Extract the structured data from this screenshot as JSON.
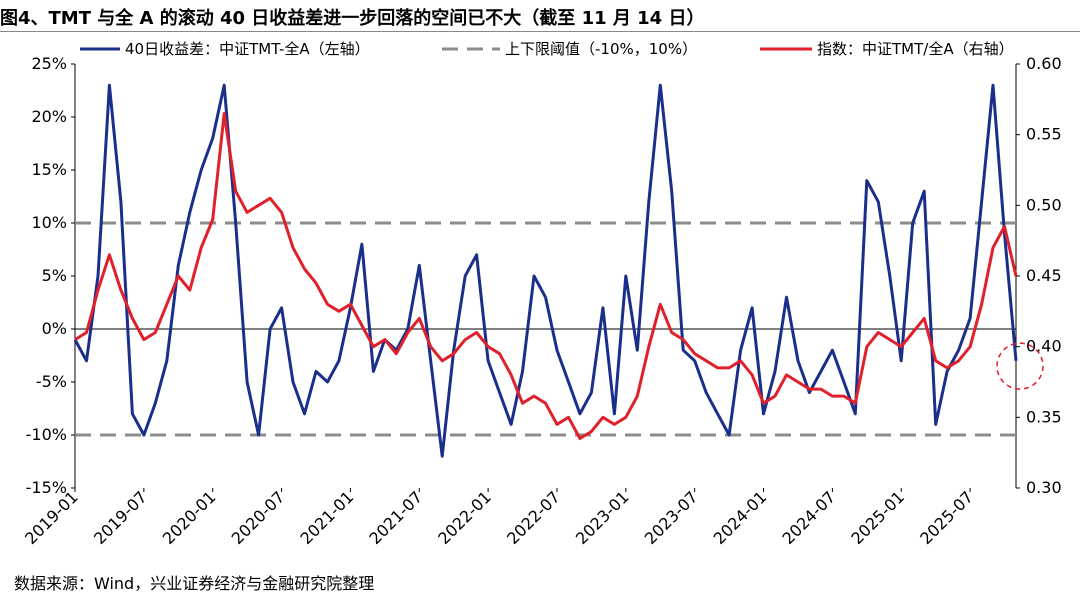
{
  "title": "图4、TMT 与全 A 的滚动 40 日收益差进一步回落的空间已不大（截至 11 月 14 日）",
  "source": "数据来源：Wind，兴业证券经济与金融研究院整理",
  "chart_data": {
    "type": "line",
    "title": "",
    "legend_position": "top",
    "grid": false,
    "x_ticks": [
      "2019-01",
      "2019-07",
      "2020-01",
      "2020-07",
      "2021-01",
      "2021-07",
      "2022-01",
      "2022-07",
      "2023-01",
      "2023-07",
      "2024-01",
      "2024-07",
      "2025-01",
      "2025-07"
    ],
    "x_range": [
      "2019-01",
      "2025-11"
    ],
    "y_left": {
      "ylim": [
        -15,
        25
      ],
      "ticks": [
        "-15%",
        "-10%",
        "-5%",
        "0%",
        "5%",
        "10%",
        "15%",
        "20%",
        "25%"
      ],
      "tick_values": [
        -15,
        -10,
        -5,
        0,
        5,
        10,
        15,
        20,
        25
      ]
    },
    "y_right": {
      "ylim": [
        0.3,
        0.6
      ],
      "ticks": [
        "0.30",
        "0.35",
        "0.40",
        "0.45",
        "0.50",
        "0.55",
        "0.60"
      ],
      "tick_values": [
        0.3,
        0.35,
        0.4,
        0.45,
        0.5,
        0.55,
        0.6
      ]
    },
    "series": [
      {
        "name": "40日收益差：中证TMT-全A（左轴）",
        "axis": "left",
        "color": "#1a2f8c",
        "points": [
          [
            "2019-01",
            -1
          ],
          [
            "2019-02",
            -3
          ],
          [
            "2019-03",
            5
          ],
          [
            "2019-04",
            23
          ],
          [
            "2019-05",
            12
          ],
          [
            "2019-06",
            -8
          ],
          [
            "2019-07",
            -10
          ],
          [
            "2019-08",
            -7
          ],
          [
            "2019-09",
            -3
          ],
          [
            "2019-10",
            6
          ],
          [
            "2019-11",
            11
          ],
          [
            "2019-12",
            15
          ],
          [
            "2020-01",
            18
          ],
          [
            "2020-02",
            23
          ],
          [
            "2020-03",
            10
          ],
          [
            "2020-04",
            -5
          ],
          [
            "2020-05",
            -10
          ],
          [
            "2020-06",
            0
          ],
          [
            "2020-07",
            2
          ],
          [
            "2020-08",
            -5
          ],
          [
            "2020-09",
            -8
          ],
          [
            "2020-10",
            -4
          ],
          [
            "2020-11",
            -5
          ],
          [
            "2020-12",
            -3
          ],
          [
            "2021-01",
            2
          ],
          [
            "2021-02",
            8
          ],
          [
            "2021-03",
            -4
          ],
          [
            "2021-04",
            -1
          ],
          [
            "2021-05",
            -2
          ],
          [
            "2021-06",
            0
          ],
          [
            "2021-07",
            6
          ],
          [
            "2021-08",
            -3
          ],
          [
            "2021-09",
            -12
          ],
          [
            "2021-10",
            -2
          ],
          [
            "2021-11",
            5
          ],
          [
            "2021-12",
            7
          ],
          [
            "2022-01",
            -3
          ],
          [
            "2022-02",
            -6
          ],
          [
            "2022-03",
            -9
          ],
          [
            "2022-04",
            -4
          ],
          [
            "2022-05",
            5
          ],
          [
            "2022-06",
            3
          ],
          [
            "2022-07",
            -2
          ],
          [
            "2022-08",
            -5
          ],
          [
            "2022-09",
            -8
          ],
          [
            "2022-10",
            -6
          ],
          [
            "2022-11",
            2
          ],
          [
            "2022-12",
            -8
          ],
          [
            "2023-01",
            5
          ],
          [
            "2023-02",
            -2
          ],
          [
            "2023-03",
            12
          ],
          [
            "2023-04",
            23
          ],
          [
            "2023-05",
            13
          ],
          [
            "2023-06",
            -2
          ],
          [
            "2023-07",
            -3
          ],
          [
            "2023-08",
            -6
          ],
          [
            "2023-09",
            -8
          ],
          [
            "2023-10",
            -10
          ],
          [
            "2023-11",
            -2
          ],
          [
            "2023-12",
            2
          ],
          [
            "2024-01",
            -8
          ],
          [
            "2024-02",
            -4
          ],
          [
            "2024-03",
            3
          ],
          [
            "2024-04",
            -3
          ],
          [
            "2024-05",
            -6
          ],
          [
            "2024-06",
            -4
          ],
          [
            "2024-07",
            -2
          ],
          [
            "2024-08",
            -5
          ],
          [
            "2024-09",
            -8
          ],
          [
            "2024-10",
            14
          ],
          [
            "2024-11",
            12
          ],
          [
            "2024-12",
            5
          ],
          [
            "2025-01",
            -3
          ],
          [
            "2025-02",
            10
          ],
          [
            "2025-03",
            13
          ],
          [
            "2025-04",
            -9
          ],
          [
            "2025-05",
            -4
          ],
          [
            "2025-06",
            -2
          ],
          [
            "2025-07",
            1
          ],
          [
            "2025-08",
            12
          ],
          [
            "2025-09",
            23
          ],
          [
            "2025-10",
            9
          ],
          [
            "2025-11",
            -3
          ]
        ]
      },
      {
        "name": "上下限阈值（-10%，10%）",
        "axis": "left",
        "color": "#8c8c8c",
        "dashed": true,
        "levels": [
          -10,
          10
        ]
      },
      {
        "name": "指数：中证TMT/全A（右轴）",
        "axis": "right",
        "color": "#e0202a",
        "points": [
          [
            "2019-01",
            0.405
          ],
          [
            "2019-02",
            0.41
          ],
          [
            "2019-03",
            0.44
          ],
          [
            "2019-04",
            0.465
          ],
          [
            "2019-05",
            0.44
          ],
          [
            "2019-06",
            0.42
          ],
          [
            "2019-07",
            0.405
          ],
          [
            "2019-08",
            0.41
          ],
          [
            "2019-09",
            0.43
          ],
          [
            "2019-10",
            0.45
          ],
          [
            "2019-11",
            0.44
          ],
          [
            "2019-12",
            0.47
          ],
          [
            "2020-01",
            0.49
          ],
          [
            "2020-02",
            0.565
          ],
          [
            "2020-03",
            0.51
          ],
          [
            "2020-04",
            0.495
          ],
          [
            "2020-05",
            0.5
          ],
          [
            "2020-06",
            0.505
          ],
          [
            "2020-07",
            0.495
          ],
          [
            "2020-08",
            0.47
          ],
          [
            "2020-09",
            0.455
          ],
          [
            "2020-10",
            0.445
          ],
          [
            "2020-11",
            0.43
          ],
          [
            "2020-12",
            0.425
          ],
          [
            "2021-01",
            0.43
          ],
          [
            "2021-02",
            0.415
          ],
          [
            "2021-03",
            0.4
          ],
          [
            "2021-04",
            0.405
          ],
          [
            "2021-05",
            0.395
          ],
          [
            "2021-06",
            0.41
          ],
          [
            "2021-07",
            0.42
          ],
          [
            "2021-08",
            0.4
          ],
          [
            "2021-09",
            0.39
          ],
          [
            "2021-10",
            0.395
          ],
          [
            "2021-11",
            0.405
          ],
          [
            "2021-12",
            0.41
          ],
          [
            "2022-01",
            0.4
          ],
          [
            "2022-02",
            0.395
          ],
          [
            "2022-03",
            0.38
          ],
          [
            "2022-04",
            0.36
          ],
          [
            "2022-05",
            0.365
          ],
          [
            "2022-06",
            0.36
          ],
          [
            "2022-07",
            0.345
          ],
          [
            "2022-08",
            0.35
          ],
          [
            "2022-09",
            0.335
          ],
          [
            "2022-10",
            0.34
          ],
          [
            "2022-11",
            0.35
          ],
          [
            "2022-12",
            0.345
          ],
          [
            "2023-01",
            0.35
          ],
          [
            "2023-02",
            0.365
          ],
          [
            "2023-03",
            0.4
          ],
          [
            "2023-04",
            0.43
          ],
          [
            "2023-05",
            0.41
          ],
          [
            "2023-06",
            0.405
          ],
          [
            "2023-07",
            0.395
          ],
          [
            "2023-08",
            0.39
          ],
          [
            "2023-09",
            0.385
          ],
          [
            "2023-10",
            0.385
          ],
          [
            "2023-11",
            0.39
          ],
          [
            "2023-12",
            0.38
          ],
          [
            "2024-01",
            0.36
          ],
          [
            "2024-02",
            0.365
          ],
          [
            "2024-03",
            0.38
          ],
          [
            "2024-04",
            0.375
          ],
          [
            "2024-05",
            0.37
          ],
          [
            "2024-06",
            0.37
          ],
          [
            "2024-07",
            0.365
          ],
          [
            "2024-08",
            0.365
          ],
          [
            "2024-09",
            0.36
          ],
          [
            "2024-10",
            0.4
          ],
          [
            "2024-11",
            0.41
          ],
          [
            "2024-12",
            0.405
          ],
          [
            "2025-01",
            0.4
          ],
          [
            "2025-02",
            0.41
          ],
          [
            "2025-03",
            0.42
          ],
          [
            "2025-04",
            0.39
          ],
          [
            "2025-05",
            0.385
          ],
          [
            "2025-06",
            0.39
          ],
          [
            "2025-07",
            0.4
          ],
          [
            "2025-08",
            0.43
          ],
          [
            "2025-09",
            0.47
          ],
          [
            "2025-10",
            0.485
          ],
          [
            "2025-11",
            0.45
          ]
        ]
      }
    ],
    "annotations": [
      {
        "type": "dashed-circle",
        "color": "#e0202a",
        "at": [
          "2025-11",
          -3.5
        ]
      }
    ]
  }
}
